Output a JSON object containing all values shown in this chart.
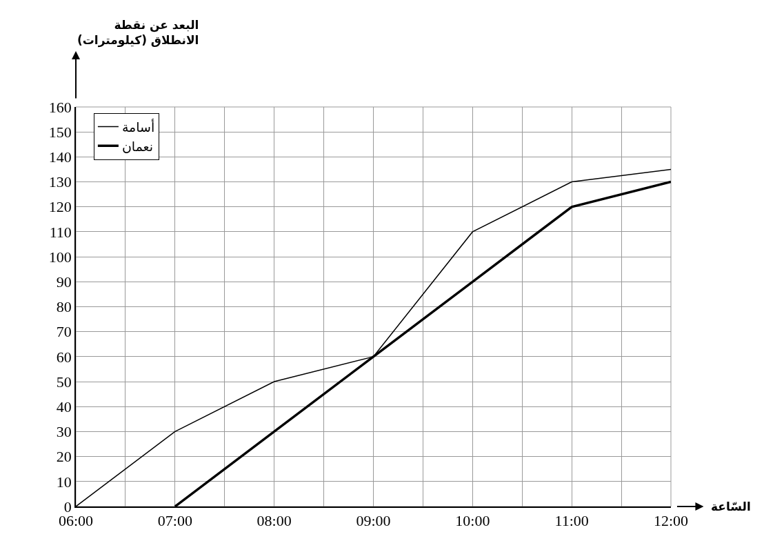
{
  "chart_data": {
    "type": "line",
    "xlabel": "السّاعة",
    "ylabel": "البعد عن نقطة\nالانطلاق (كيلومترات)",
    "x": [
      6,
      7,
      8,
      9,
      10,
      11,
      12
    ],
    "series": [
      {
        "name": "أسامة",
        "color": "#000000",
        "values": [
          0,
          30,
          50,
          60,
          110,
          130,
          135
        ]
      },
      {
        "name": "نعمان",
        "color": "#000000",
        "x": [
          7,
          8,
          9,
          10,
          11,
          12
        ],
        "values": [
          0,
          30,
          60,
          90,
          120,
          130
        ]
      }
    ],
    "xlim": [
      6,
      12
    ],
    "xticks": [
      {
        "value": 6,
        "label": "06:00"
      },
      {
        "value": 6.5,
        "label": null
      },
      {
        "value": 7,
        "label": "07:00"
      },
      {
        "value": 7.5,
        "label": null
      },
      {
        "value": 8,
        "label": "08:00"
      },
      {
        "value": 8.5,
        "label": null
      },
      {
        "value": 9,
        "label": "09:00"
      },
      {
        "value": 9.5,
        "label": null
      },
      {
        "value": 10,
        "label": "10:00"
      },
      {
        "value": 10.5,
        "label": null
      },
      {
        "value": 11,
        "label": "11:00"
      },
      {
        "value": 11.5,
        "label": null
      },
      {
        "value": 12,
        "label": "12:00"
      }
    ],
    "ylim": [
      0,
      160
    ],
    "yticks": [
      0,
      10,
      20,
      30,
      40,
      50,
      60,
      70,
      80,
      90,
      100,
      110,
      120,
      130,
      140,
      150,
      160
    ],
    "grid": true,
    "legend": "top left",
    "marker": "none",
    "line_style": "solid"
  }
}
